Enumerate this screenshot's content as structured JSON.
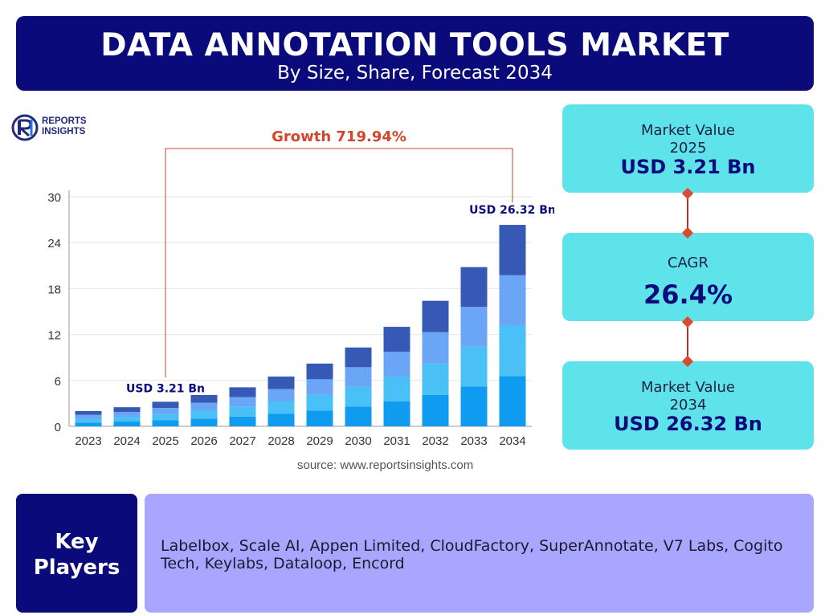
{
  "header": {
    "title": "DATA ANNOTATION TOOLS MARKET",
    "subtitle": "By Size, Share, Forecast 2034"
  },
  "logo": {
    "line1": "REPORTS",
    "line2": "INSIGHTS"
  },
  "chart_data": {
    "type": "bar",
    "stacked": true,
    "categories": [
      "2023",
      "2024",
      "2025",
      "2026",
      "2027",
      "2028",
      "2029",
      "2030",
      "2031",
      "2032",
      "2033",
      "2034"
    ],
    "totals": [
      2.0,
      2.5,
      3.21,
      4.1,
      5.1,
      6.5,
      8.2,
      10.3,
      13.0,
      16.4,
      20.8,
      26.32
    ],
    "segments": 4,
    "segment_colors": [
      "#0f9cf0",
      "#49c1f7",
      "#6aa6f5",
      "#3559b5"
    ],
    "ylim": [
      0,
      30
    ],
    "yticks": [
      0,
      6,
      12,
      18,
      24,
      30
    ],
    "grid": true,
    "annotations": {
      "growth_label": "Growth 719.94%",
      "start_label": "USD 3.21 Bn",
      "end_label": "USD 26.32 Bn"
    },
    "colors": {
      "axis_text": "#333333",
      "growth": "#d4462a",
      "annotation": "#0a0a7a",
      "bracket": "#c8452a"
    }
  },
  "source": "source: www.reportsinsights.com",
  "kpis": [
    {
      "label": "Market Value",
      "year": "2025",
      "value": "USD 3.21 Bn"
    },
    {
      "label": "CAGR",
      "value": "26.4%"
    },
    {
      "label": "Market Value",
      "year": "2034",
      "value": "USD 26.32 Bn"
    }
  ],
  "key_players": {
    "title_line1": "Key",
    "title_line2": "Players",
    "list": "Labelbox, Scale AI, Appen Limited, CloudFactory, SuperAnnotate, V7 Labs, Cogito Tech, Keylabs, Dataloop, Encord"
  }
}
